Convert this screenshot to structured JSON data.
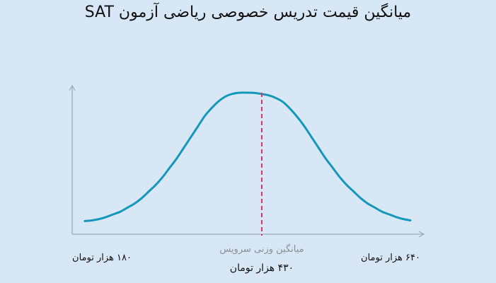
{
  "chart_data": {
    "type": "line",
    "title": "میانگین قیمت تدریس خصوصی ریاضی آزمون SAT",
    "min_label": "۱۸۰ هزار تومان",
    "max_label": "۶۴۰ هزار تومان",
    "mean_caption": "میانگین وزنی سرویس",
    "mean_value_label": "۴۳۰ هزار تومان",
    "xlim": [
      180,
      640
    ],
    "mean": 430,
    "curve": {
      "x": [
        180,
        190,
        200,
        210,
        220,
        230,
        240,
        250,
        260,
        270,
        280,
        290,
        300,
        310,
        320,
        330,
        340,
        350,
        360,
        370,
        380,
        390,
        400,
        410,
        420,
        430,
        440,
        450,
        460,
        470,
        480,
        490,
        500,
        510,
        520,
        530,
        540,
        550,
        560,
        570,
        580,
        590,
        600,
        610,
        620,
        630,
        640
      ],
      "y": [
        0.04,
        0.045,
        0.055,
        0.07,
        0.09,
        0.11,
        0.14,
        0.17,
        0.21,
        0.26,
        0.31,
        0.37,
        0.44,
        0.51,
        0.59,
        0.67,
        0.75,
        0.83,
        0.89,
        0.94,
        0.975,
        0.993,
        1.0,
        1.0,
        0.998,
        0.99,
        0.98,
        0.96,
        0.93,
        0.88,
        0.82,
        0.75,
        0.67,
        0.59,
        0.51,
        0.44,
        0.37,
        0.31,
        0.26,
        0.21,
        0.17,
        0.14,
        0.11,
        0.09,
        0.07,
        0.055,
        0.045
      ]
    },
    "colors": {
      "curve": "#1597bb",
      "mean_line": "#e8336a",
      "axis": "#9aa8b8",
      "caption": "#8a8f96",
      "text": "#111111"
    }
  }
}
